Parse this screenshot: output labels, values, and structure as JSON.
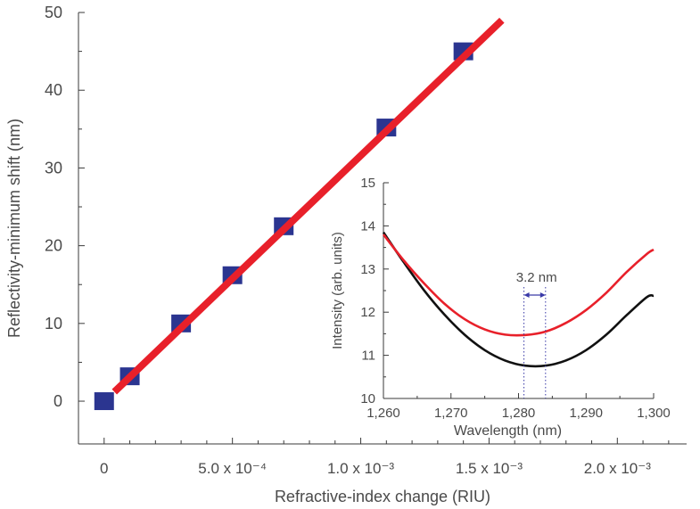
{
  "chart_data": [
    {
      "type": "scatter",
      "title": "",
      "xlabel": "Refractive-index change (RIU)",
      "ylabel": "Reflectivity-minimum shift (nm)",
      "xlim": [
        -0.0001,
        0.00227
      ],
      "ylim": [
        -5.5,
        50
      ],
      "x_ticks": [
        0,
        0.0005,
        0.001,
        0.0015,
        0.002
      ],
      "x_tick_labels": [
        "0",
        "5.0 x 10⁻⁴",
        "1.0 x 10⁻³",
        "1.5 x 10⁻³",
        "2.0 x 10⁻³"
      ],
      "y_ticks": [
        0,
        10,
        20,
        30,
        40,
        50
      ],
      "y_tick_labels": [
        "0",
        "10",
        "20",
        "30",
        "40",
        "50"
      ],
      "grid": false,
      "series": [
        {
          "type": "scatter",
          "color": "#2b3590",
          "marker": "square",
          "points": [
            {
              "x": 0,
              "y": 0
            },
            {
              "x": 0.0001,
              "y": 3.2
            },
            {
              "x": 0.0003,
              "y": 10
            },
            {
              "x": 0.0005,
              "y": 16.2
            },
            {
              "x": 0.0007,
              "y": 22.5
            },
            {
              "x": 0.0011,
              "y": 35.2
            },
            {
              "x": 0.0014,
              "y": 45
            }
          ]
        },
        {
          "type": "line",
          "color": "#e8202a",
          "points": [
            {
              "x": 4e-05,
              "y": 1.2
            },
            {
              "x": 0.00155,
              "y": 49
            }
          ]
        }
      ]
    },
    {
      "type": "line",
      "title": "",
      "xlabel": "Wavelength (nm)",
      "ylabel": "Intensity (arb. units)",
      "xlim": [
        1260,
        1300
      ],
      "ylim": [
        10,
        15
      ],
      "x_ticks": [
        1260,
        1270,
        1280,
        1290,
        1300
      ],
      "x_tick_labels": [
        "1,260",
        "1,270",
        "1,280",
        "1,290",
        "1,300"
      ],
      "y_ticks": [
        10,
        11,
        12,
        13,
        14,
        15
      ],
      "y_tick_labels": [
        "10",
        "11",
        "12",
        "13",
        "14",
        "15"
      ],
      "grid": false,
      "series": [
        {
          "color": "#111111",
          "x": [
            1260,
            1263,
            1266,
            1269,
            1272,
            1275,
            1278,
            1281,
            1284,
            1287,
            1290,
            1293,
            1296,
            1299,
            1300
          ],
          "y": [
            13.85,
            13.16,
            12.51,
            11.95,
            11.48,
            11.12,
            10.88,
            10.76,
            10.76,
            10.88,
            11.12,
            11.48,
            11.93,
            12.35,
            12.38
          ]
        },
        {
          "color": "#e8202a",
          "x": [
            1260,
            1263,
            1266,
            1269,
            1272,
            1275,
            1278,
            1281,
            1284,
            1287,
            1290,
            1293,
            1296,
            1299,
            1300
          ],
          "y": [
            13.8,
            13.2,
            12.67,
            12.2,
            11.84,
            11.6,
            11.48,
            11.47,
            11.55,
            11.75,
            12.05,
            12.45,
            12.93,
            13.35,
            13.45
          ]
        }
      ],
      "annotations": [
        {
          "text": "3.2 nm",
          "x_from": 1280.8,
          "x_to": 1284,
          "arrow_color": "#3a3aa8"
        }
      ]
    }
  ]
}
